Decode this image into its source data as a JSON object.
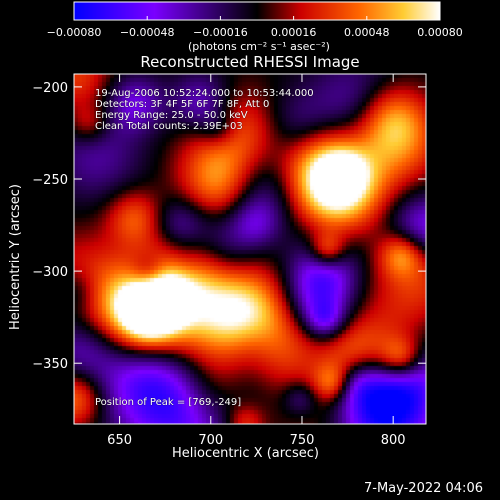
{
  "chart_data": {
    "type": "heatmap",
    "title": "Reconstructed RHESSI Image",
    "xlabel": "Heliocentric X (arcsec)",
    "ylabel": "Heliocentric Y (arcsec)",
    "xlim": [
      625,
      818
    ],
    "ylim": [
      -383,
      -193
    ],
    "x_ticks": [
      650,
      700,
      750,
      800
    ],
    "x_tick_labels": [
      "650",
      "700",
      "750",
      "800"
    ],
    "y_ticks": [
      -200,
      -250,
      -300,
      -350
    ],
    "y_tick_labels": [
      "−200",
      "−250",
      "−300",
      "−350"
    ],
    "colorbar": {
      "min": -0.0008,
      "max": 0.0008,
      "ticks": [
        -0.0008,
        -0.00048,
        -0.00016,
        0.00016,
        0.00048,
        0.0008
      ],
      "tick_labels": [
        "−0.00080",
        "−0.00048",
        "−0.00016",
        "0.00016",
        "0.00048",
        "0.00080"
      ],
      "units": "(photons cm⁻² s⁻¹ asec⁻²)",
      "colors": [
        "#0000ff",
        "#7a00ff",
        "#000000",
        "#cc0000",
        "#ff6600",
        "#ffcc33",
        "#ffffff"
      ]
    },
    "annotations": [
      "19-Aug-2006 10:52:24.000 to 10:53:44.000",
      "Detectors: 3F 4F 5F 6F 7F 8F, Att 0",
      "Energy Range: 25.0 - 50.0 keV",
      "Clean    Total counts: 2.39E+03"
    ],
    "peak_label": "Position of Peak = [769,-249]",
    "peak_position": [
      769,
      -249
    ]
  },
  "footer": {
    "timestamp": "7-May-2022 04:06"
  }
}
